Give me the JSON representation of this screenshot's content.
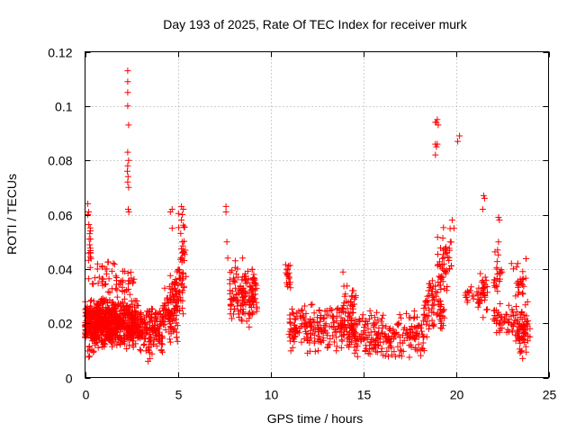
{
  "chart_data": {
    "type": "scatter",
    "title": "Day 193 of 2025, Rate Of TEC Index for receiver murk",
    "xlabel": "GPS time / hours",
    "ylabel": "ROTI / TECUs",
    "xlim": [
      0,
      25
    ],
    "ylim": [
      0,
      0.12
    ],
    "x_ticks": [
      0,
      5,
      10,
      15,
      20,
      25
    ],
    "x_tick_labels": [
      "0",
      "5",
      "10",
      "15",
      "20",
      "25"
    ],
    "y_ticks": [
      0,
      0.02,
      0.04,
      0.06,
      0.08,
      0.1,
      0.12
    ],
    "y_tick_labels": [
      "0",
      "0.02",
      "0.04",
      "0.06",
      "0.08",
      "0.1",
      "0.12"
    ],
    "grid": true,
    "marker": "+",
    "color": "#ff0000",
    "clusters": [
      {
        "x": [
          0.0,
          2.8
        ],
        "y": [
          0.01,
          0.03
        ],
        "n": 700
      },
      {
        "x": [
          0.2,
          0.3
        ],
        "y": [
          0.03,
          0.065
        ],
        "n": 14
      },
      {
        "x": [
          0.0,
          0.5
        ],
        "y": [
          0.007,
          0.012
        ],
        "n": 8
      },
      {
        "x": [
          0.3,
          2.7
        ],
        "y": [
          0.028,
          0.045
        ],
        "n": 60
      },
      {
        "x": [
          2.8,
          4.2
        ],
        "y": [
          0.008,
          0.028
        ],
        "n": 160
      },
      {
        "x": [
          4.2,
          5.0
        ],
        "y": [
          0.012,
          0.035
        ],
        "n": 80
      },
      {
        "x": [
          4.5,
          5.3
        ],
        "y": [
          0.02,
          0.04
        ],
        "n": 50
      },
      {
        "x": [
          5.0,
          5.5
        ],
        "y": [
          0.025,
          0.063
        ],
        "n": 35
      },
      {
        "x": [
          7.8,
          9.3
        ],
        "y": [
          0.018,
          0.042
        ],
        "n": 140
      },
      {
        "x": [
          10.8,
          11.1
        ],
        "y": [
          0.028,
          0.044
        ],
        "n": 18
      },
      {
        "x": [
          11.0,
          14.5
        ],
        "y": [
          0.009,
          0.028
        ],
        "n": 230
      },
      {
        "x": [
          13.9,
          14.6
        ],
        "y": [
          0.018,
          0.04
        ],
        "n": 30
      },
      {
        "x": [
          14.5,
          18.3
        ],
        "y": [
          0.006,
          0.025
        ],
        "n": 220
      },
      {
        "x": [
          18.2,
          19.4
        ],
        "y": [
          0.012,
          0.04
        ],
        "n": 80
      },
      {
        "x": [
          19.0,
          19.8
        ],
        "y": [
          0.025,
          0.06
        ],
        "n": 50
      },
      {
        "x": [
          20.5,
          21.6
        ],
        "y": [
          0.025,
          0.034
        ],
        "n": 30
      },
      {
        "x": [
          21.3,
          21.7
        ],
        "y": [
          0.02,
          0.045
        ],
        "n": 22
      },
      {
        "x": [
          22.0,
          22.5
        ],
        "y": [
          0.022,
          0.05
        ],
        "n": 24
      },
      {
        "x": [
          22.0,
          23.2
        ],
        "y": [
          0.015,
          0.028
        ],
        "n": 50
      },
      {
        "x": [
          23.2,
          23.9
        ],
        "y": [
          0.008,
          0.028
        ],
        "n": 70
      },
      {
        "x": [
          23.2,
          23.8
        ],
        "y": [
          0.028,
          0.044
        ],
        "n": 22
      }
    ],
    "points": [
      [
        2.3,
        0.113
      ],
      [
        2.3,
        0.109
      ],
      [
        2.3,
        0.105
      ],
      [
        2.3,
        0.1
      ],
      [
        2.35,
        0.093
      ],
      [
        2.3,
        0.083
      ],
      [
        2.35,
        0.08
      ],
      [
        2.3,
        0.078
      ],
      [
        2.28,
        0.076
      ],
      [
        2.32,
        0.074
      ],
      [
        2.3,
        0.072
      ],
      [
        2.35,
        0.07
      ],
      [
        2.33,
        0.062
      ],
      [
        2.36,
        0.061
      ],
      [
        0.15,
        0.06
      ],
      [
        0.2,
        0.061
      ],
      [
        0.15,
        0.064
      ],
      [
        0.25,
        0.053
      ],
      [
        0.3,
        0.051
      ],
      [
        4.6,
        0.061
      ],
      [
        4.7,
        0.062
      ],
      [
        5.2,
        0.063
      ],
      [
        5.3,
        0.062
      ],
      [
        5.25,
        0.06
      ],
      [
        5.2,
        0.058
      ],
      [
        4.7,
        0.055
      ],
      [
        5.25,
        0.05
      ],
      [
        7.6,
        0.063
      ],
      [
        7.6,
        0.061
      ],
      [
        7.65,
        0.05
      ],
      [
        7.7,
        0.044
      ],
      [
        8.1,
        0.043
      ],
      [
        8.5,
        0.044
      ],
      [
        9.1,
        0.038
      ],
      [
        18.9,
        0.094
      ],
      [
        19.0,
        0.095
      ],
      [
        19.05,
        0.093
      ],
      [
        18.95,
        0.094
      ],
      [
        18.9,
        0.086
      ],
      [
        19.0,
        0.086
      ],
      [
        18.95,
        0.085
      ],
      [
        18.9,
        0.082
      ],
      [
        20.1,
        0.087
      ],
      [
        20.2,
        0.089
      ],
      [
        19.8,
        0.058
      ],
      [
        19.9,
        0.055
      ],
      [
        19.7,
        0.05
      ],
      [
        21.5,
        0.067
      ],
      [
        21.55,
        0.066
      ],
      [
        21.45,
        0.062
      ],
      [
        22.3,
        0.059
      ],
      [
        22.35,
        0.058
      ],
      [
        22.3,
        0.05
      ],
      [
        22.25,
        0.047
      ],
      [
        23.1,
        0.04
      ],
      [
        23.0,
        0.042
      ],
      [
        24.0,
        0.018
      ],
      [
        24.0,
        0.015
      ],
      [
        23.6,
        0.007
      ],
      [
        3.4,
        0.006
      ],
      [
        3.5,
        0.007
      ],
      [
        12.0,
        0.009
      ],
      [
        16.2,
        0.008
      ]
    ]
  }
}
